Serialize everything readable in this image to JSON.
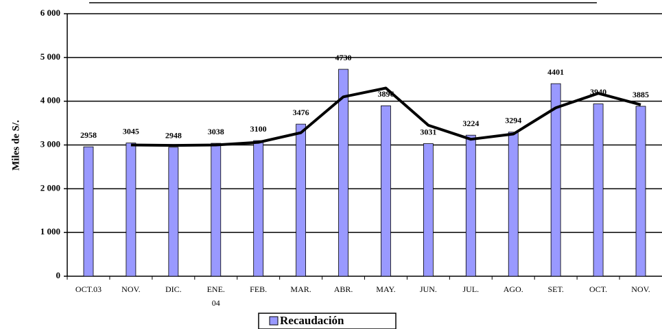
{
  "chart_data": {
    "type": "bar",
    "y_label": "Miles de S/.",
    "categories": [
      "OCT.03",
      "NOV.",
      "DIC.",
      "ENE. 04",
      "FEB.",
      "MAR.",
      "ABR.",
      "MAY.",
      "JUN.",
      "JUL.",
      "AGO.",
      "SET.",
      "OCT.",
      "NOV."
    ],
    "series": [
      {
        "name": "Recaudación",
        "color": "#9999ff",
        "values": [
          2958,
          3045,
          2948,
          3038,
          3100,
          3476,
          4730,
          3896,
          3031,
          3224,
          3294,
          4401,
          3940,
          3885
        ]
      },
      {
        "type": "line",
        "color": "#000000",
        "values": [
          null,
          3000,
          2990,
          3000,
          3060,
          3280,
          4100,
          4300,
          3450,
          3130,
          3250,
          3850,
          4180,
          3920
        ]
      }
    ],
    "ylim": [
      0,
      6000
    ],
    "yticks": [
      0,
      {
        "value": 1000,
        "label": "1 000"
      },
      {
        "value": 2000,
        "label": "2 000"
      },
      {
        "value": 3000,
        "label": "3 000"
      },
      {
        "value": 4000,
        "label": "4 000"
      },
      {
        "value": 5000,
        "label": "5 000"
      },
      {
        "value": 6000,
        "label": "6 000"
      }
    ],
    "grid": true
  }
}
